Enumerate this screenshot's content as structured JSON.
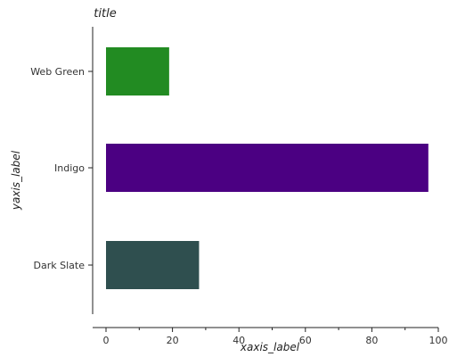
{
  "chart_data": {
    "type": "bar",
    "orientation": "horizontal",
    "title": "title",
    "xlabel": "xaxis_label",
    "ylabel": "yaxis_label",
    "categories": [
      "Dark Slate",
      "Indigo",
      "Web Green"
    ],
    "values": [
      28,
      97,
      19
    ],
    "colors": [
      "#2f4f4f",
      "#4b0082",
      "#228b22"
    ],
    "xlim": [
      0,
      100
    ],
    "xticks": [
      0,
      20,
      40,
      60,
      80,
      100
    ],
    "grid": false,
    "legend": "none"
  }
}
